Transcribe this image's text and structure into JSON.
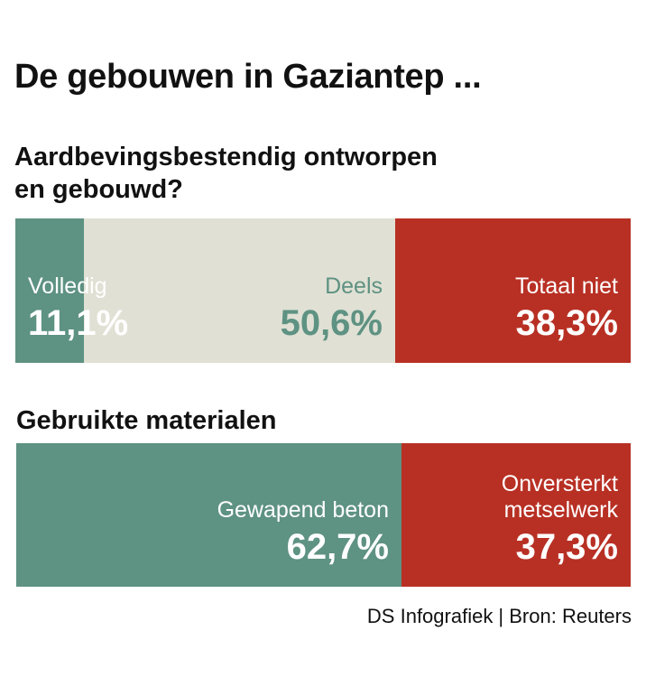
{
  "title": "De gebouwen in Gaziantep ...",
  "source": "DS Infografiek | Bron: Reuters",
  "colors": {
    "green": "#5e9282",
    "beige": "#e0e0d4",
    "red": "#b83024",
    "white": "#ffffff"
  },
  "chart_data": [
    {
      "type": "bar",
      "subtitle": "Aardbevingsbestendig ontworpen\nen gebouwd?",
      "subtitle_lines": [
        "Aardbevingsbestendig ontworpen",
        "en gebouwd?"
      ],
      "categories": [
        "Volledig",
        "Deels",
        "Totaal niet"
      ],
      "values": [
        11.1,
        50.6,
        38.3
      ],
      "value_labels": [
        "11,1%",
        "50,6%",
        "38,3%"
      ],
      "label_lines": [
        [
          "Volledig"
        ],
        [
          "Deels"
        ],
        [
          "Totaal niet"
        ]
      ],
      "colors": [
        "#5e9282",
        "#e0e0d4",
        "#b83024"
      ],
      "text_colors": [
        "#ffffff",
        "#5e9282",
        "#ffffff"
      ],
      "stacked": true,
      "unit": "%"
    },
    {
      "type": "bar",
      "subtitle": "Gebruikte materialen",
      "subtitle_lines": [
        "Gebruikte materialen"
      ],
      "categories": [
        "Gewapend beton",
        "Onversterkt metselwerk"
      ],
      "values": [
        62.7,
        37.3
      ],
      "value_labels": [
        "62,7%",
        "37,3%"
      ],
      "label_lines": [
        [
          "Gewapend beton"
        ],
        [
          "Onversterkt",
          "metselwerk"
        ]
      ],
      "colors": [
        "#5e9282",
        "#b83024"
      ],
      "text_colors": [
        "#ffffff",
        "#ffffff"
      ],
      "stacked": true,
      "unit": "%"
    }
  ]
}
